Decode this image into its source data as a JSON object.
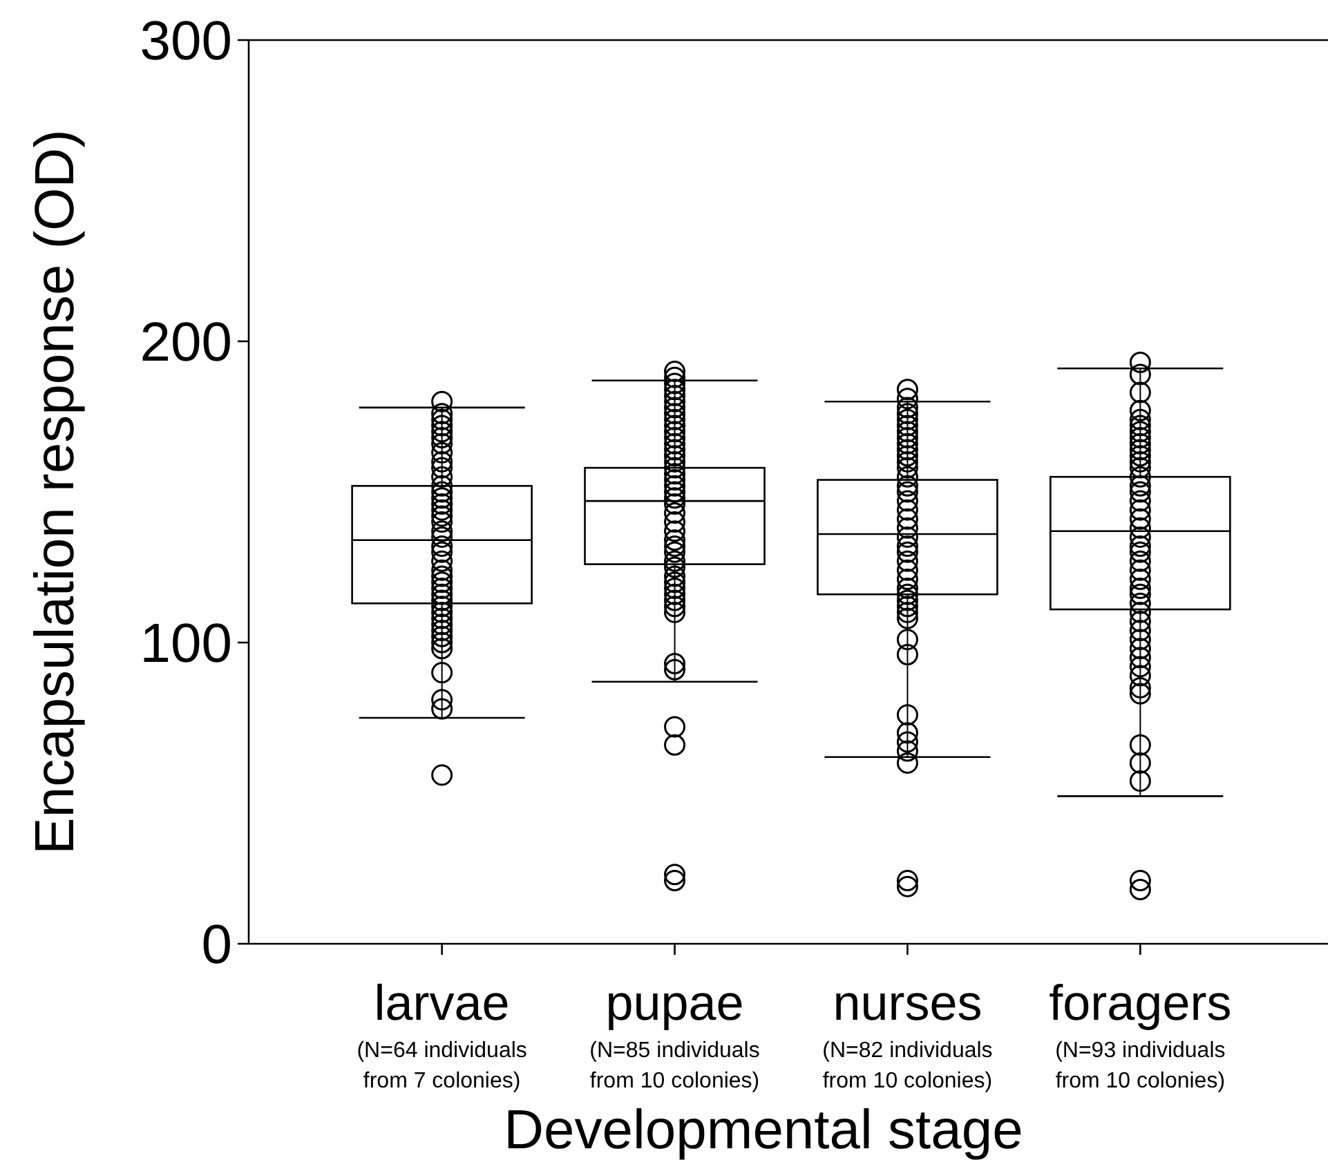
{
  "chart_data": {
    "type": "box",
    "xlabel": "Developmental stage",
    "ylabel": "Encapsulation response (OD)",
    "categories": [
      "larvae",
      "pupae",
      "nurses",
      "foragers"
    ],
    "ylim": [
      0,
      300
    ],
    "yticks": [
      0,
      100,
      200,
      300
    ],
    "boxes": [
      {
        "low": 75,
        "q1": 113,
        "median": 134,
        "q3": 152,
        "high": 178
      },
      {
        "low": 87,
        "q1": 126,
        "median": 147,
        "q3": 158,
        "high": 187
      },
      {
        "low": 62,
        "q1": 116,
        "median": 136,
        "q3": 154,
        "high": 180
      },
      {
        "low": 49,
        "q1": 111,
        "median": 137,
        "q3": 155,
        "high": 191
      }
    ],
    "series": [
      {
        "type": "scatter",
        "color": "#000000",
        "marker": "circle",
        "x": [
          "larvae",
          "larvae",
          "larvae",
          "larvae",
          "larvae",
          "larvae",
          "larvae",
          "larvae",
          "larvae",
          "larvae",
          "larvae",
          "larvae",
          "larvae",
          "larvae",
          "larvae",
          "larvae",
          "larvae",
          "larvae",
          "larvae",
          "larvae",
          "larvae",
          "larvae",
          "larvae",
          "larvae",
          "larvae",
          "larvae",
          "larvae",
          "larvae",
          "larvae",
          "larvae",
          "larvae",
          "larvae",
          "larvae",
          "larvae",
          "larvae",
          "larvae",
          "larvae",
          "larvae",
          "larvae",
          "larvae",
          "larvae",
          "pupae",
          "pupae",
          "pupae",
          "pupae",
          "pupae",
          "pupae",
          "pupae",
          "pupae",
          "pupae",
          "pupae",
          "pupae",
          "pupae",
          "pupae",
          "pupae",
          "pupae",
          "pupae",
          "pupae",
          "pupae",
          "pupae",
          "pupae",
          "pupae",
          "pupae",
          "pupae",
          "pupae",
          "pupae",
          "pupae",
          "pupae",
          "pupae",
          "pupae",
          "pupae",
          "pupae",
          "pupae",
          "pupae",
          "pupae",
          "pupae",
          "pupae",
          "pupae",
          "pupae",
          "pupae",
          "pupae",
          "pupae",
          "pupae",
          "pupae",
          "pupae",
          "nurses",
          "nurses",
          "nurses",
          "nurses",
          "nurses",
          "nurses",
          "nurses",
          "nurses",
          "nurses",
          "nurses",
          "nurses",
          "nurses",
          "nurses",
          "nurses",
          "nurses",
          "nurses",
          "nurses",
          "nurses",
          "nurses",
          "nurses",
          "nurses",
          "nurses",
          "nurses",
          "nurses",
          "nurses",
          "nurses",
          "nurses",
          "nurses",
          "nurses",
          "nurses",
          "nurses",
          "nurses",
          "nurses",
          "nurses",
          "nurses",
          "nurses",
          "nurses",
          "nurses",
          "nurses",
          "nurses",
          "nurses",
          "foragers",
          "foragers",
          "foragers",
          "foragers",
          "foragers",
          "foragers",
          "foragers",
          "foragers",
          "foragers",
          "foragers",
          "foragers",
          "foragers",
          "foragers",
          "foragers",
          "foragers",
          "foragers",
          "foragers",
          "foragers",
          "foragers",
          "foragers",
          "foragers",
          "foragers",
          "foragers",
          "foragers",
          "foragers",
          "foragers",
          "foragers",
          "foragers",
          "foragers",
          "foragers",
          "foragers",
          "foragers",
          "foragers",
          "foragers",
          "foragers",
          "foragers",
          "foragers",
          "foragers",
          "foragers",
          "foragers",
          "foragers",
          "foragers",
          "foragers",
          "foragers"
        ],
        "values": [
          180,
          176,
          174,
          172,
          170,
          168,
          166,
          163,
          160,
          158,
          155,
          152,
          150,
          148,
          146,
          144,
          142,
          140,
          137,
          135,
          132,
          130,
          127,
          124,
          122,
          120,
          118,
          116,
          114,
          112,
          110,
          108,
          106,
          104,
          102,
          100,
          98,
          90,
          81,
          78,
          56,
          190,
          188,
          186,
          184,
          182,
          180,
          178,
          176,
          174,
          172,
          170,
          168,
          166,
          164,
          162,
          160,
          158,
          156,
          154,
          152,
          150,
          148,
          146,
          143,
          140,
          137,
          134,
          132,
          130,
          127,
          125,
          122,
          120,
          118,
          116,
          114,
          112,
          110,
          93,
          91,
          72,
          66,
          23,
          21,
          184,
          181,
          178,
          176,
          174,
          172,
          170,
          168,
          166,
          164,
          162,
          160,
          158,
          155,
          152,
          150,
          147,
          144,
          141,
          138,
          135,
          132,
          130,
          127,
          124,
          121,
          118,
          116,
          114,
          112,
          110,
          108,
          101,
          96,
          76,
          70,
          67,
          64,
          60,
          21,
          19,
          193,
          189,
          183,
          177,
          174,
          172,
          170,
          168,
          166,
          164,
          162,
          160,
          158,
          155,
          152,
          150,
          147,
          144,
          141,
          138,
          135,
          132,
          130,
          127,
          124,
          121,
          118,
          116,
          113,
          110,
          107,
          104,
          101,
          98,
          95,
          92,
          89,
          85,
          83,
          66,
          60,
          54,
          21,
          18
        ]
      }
    ],
    "annotations": [
      "(N=64 individuals\nfrom 7 colonies)",
      "(N=85 individuals\nfrom 10 colonies)",
      "(N=82 individuals\nfrom 10 colonies)",
      "(N=93 individuals\nfrom 10 colonies)"
    ]
  }
}
